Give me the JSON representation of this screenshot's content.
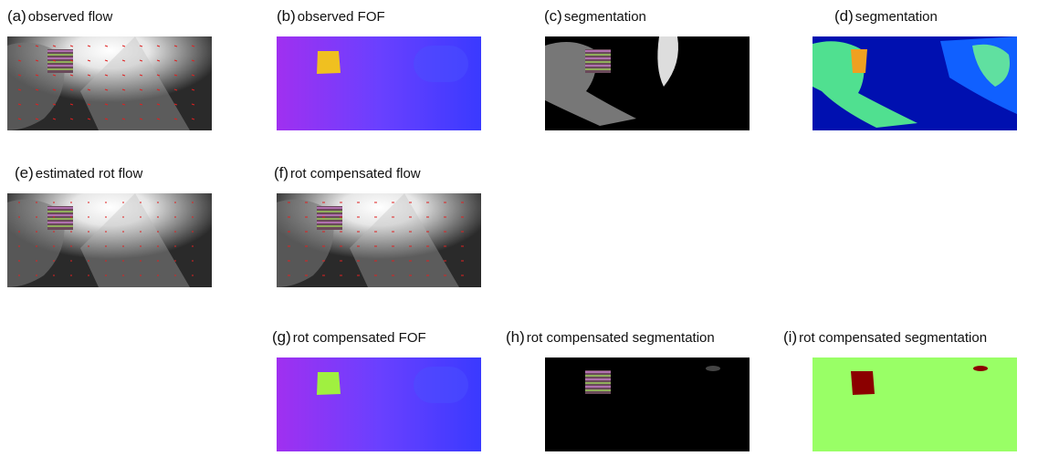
{
  "panels": [
    {
      "tag": "(a)",
      "caption": "observed flow"
    },
    {
      "tag": "(b)",
      "caption": "observed FOF"
    },
    {
      "tag": "(c)",
      "caption": "segmentation"
    },
    {
      "tag": "(d)",
      "caption": "segmentation"
    },
    {
      "tag": "(e)",
      "caption": "estimated rot flow"
    },
    {
      "tag": "(f)",
      "caption": "rot compensated flow"
    },
    {
      "tag": "(g)",
      "caption": "rot compensated FOF"
    },
    {
      "tag": "(h)",
      "caption": "rot compensated segmentation"
    },
    {
      "tag": "(i)",
      "caption": "rot compensated segmentation"
    }
  ]
}
